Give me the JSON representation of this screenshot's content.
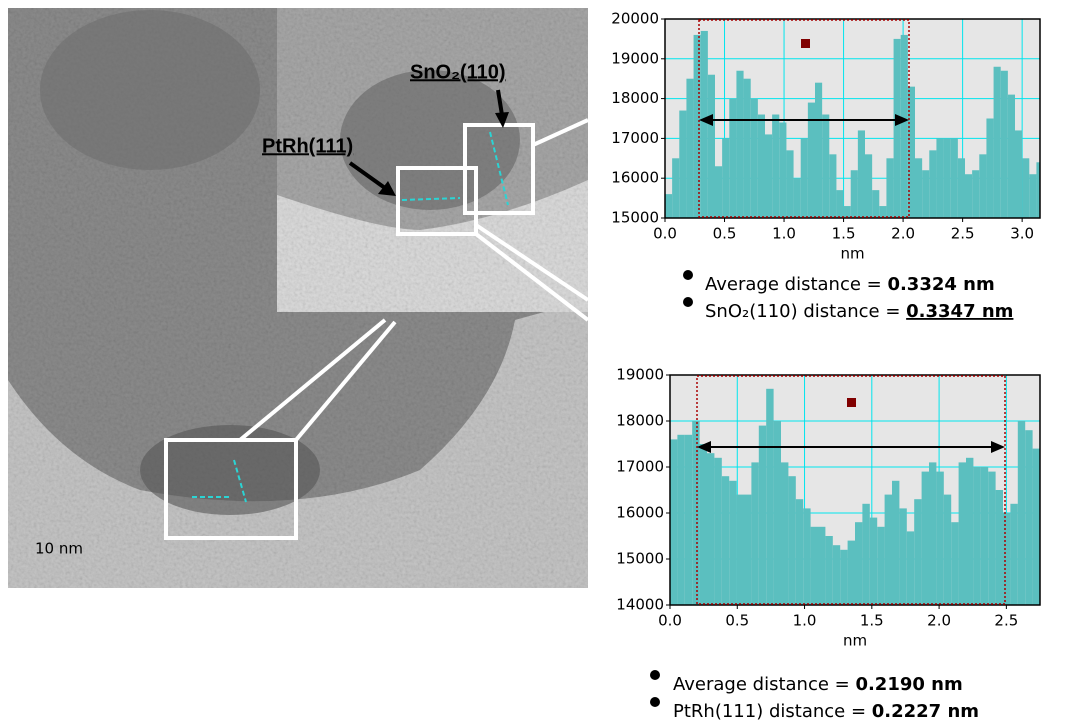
{
  "image": {
    "scale_bar": "10 nm",
    "labels": [
      "PtRh(111)",
      "SnO₂(110)"
    ]
  },
  "chart_data": [
    {
      "type": "bar",
      "x_label": "nm",
      "color": "#5bbfbf",
      "grid": true,
      "grid_color": "#00e5ee",
      "x": [
        0,
        0.06,
        0.12,
        0.18,
        0.24,
        0.3,
        0.36,
        0.42,
        0.48,
        0.54,
        0.6,
        0.66,
        0.72,
        0.78,
        0.84,
        0.9,
        0.96,
        1.02,
        1.08,
        1.14,
        1.2,
        1.26,
        1.32,
        1.38,
        1.44,
        1.5,
        1.56,
        1.62,
        1.68,
        1.74,
        1.8,
        1.86,
        1.92,
        1.98,
        2.04,
        2.1,
        2.16,
        2.22,
        2.28,
        2.34,
        2.4,
        2.46,
        2.52,
        2.58,
        2.64,
        2.7,
        2.76,
        2.82,
        2.88,
        2.94,
        3.0,
        3.06,
        3.12
      ],
      "values": [
        15600,
        16500,
        17700,
        18500,
        19600,
        19700,
        18600,
        16300,
        17000,
        18000,
        18700,
        18500,
        18000,
        17600,
        17100,
        17600,
        17400,
        16700,
        16000,
        17000,
        17900,
        18400,
        17600,
        16600,
        15700,
        15300,
        16200,
        17200,
        16600,
        15700,
        15300,
        16500,
        19500,
        19600,
        18300,
        16500,
        16200,
        16700,
        17000,
        17000,
        17000,
        16500,
        16100,
        16200,
        16600,
        17500,
        18800,
        18700,
        18100,
        17200,
        16500,
        16100,
        16400
      ],
      "xlim": [
        0,
        3.15
      ],
      "ylim": [
        15000,
        20000
      ],
      "xticks": [
        {
          "value": 0,
          "label": "0.0"
        },
        0.5,
        {
          "value": 1,
          "label": "1.0"
        },
        1.5,
        {
          "value": 2,
          "label": "2.0"
        },
        2.5,
        {
          "value": 3,
          "label": "3.0"
        }
      ],
      "yticks": [
        15000,
        16000,
        17000,
        18000,
        19000,
        20000
      ],
      "notes": [
        {
          "text": "Average distance = ",
          "value": "0.3324 nm"
        },
        {
          "text": "SnO₂(110) distance = ",
          "value": "0.3347 nm"
        }
      ]
    },
    {
      "type": "bar",
      "x_label": "nm",
      "color": "#5bbfbf",
      "grid": true,
      "grid_color": "#00e5ee",
      "x": [
        0,
        0.055,
        0.11,
        0.165,
        0.22,
        0.275,
        0.33,
        0.385,
        0.44,
        0.495,
        0.55,
        0.605,
        0.66,
        0.715,
        0.77,
        0.825,
        0.88,
        0.935,
        0.99,
        1.045,
        1.1,
        1.155,
        1.21,
        1.265,
        1.32,
        1.375,
        1.43,
        1.485,
        1.54,
        1.595,
        1.65,
        1.705,
        1.76,
        1.815,
        1.87,
        1.925,
        1.98,
        2.035,
        2.09,
        2.145,
        2.2,
        2.255,
        2.31,
        2.365,
        2.42,
        2.475,
        2.53,
        2.585,
        2.64,
        2.695
      ],
      "values": [
        17600,
        17700,
        17700,
        18000,
        17500,
        17300,
        17200,
        16800,
        16700,
        16400,
        16400,
        17100,
        17900,
        18700,
        18000,
        17100,
        16800,
        16300,
        16100,
        15700,
        15700,
        15500,
        15300,
        15200,
        15400,
        15800,
        16200,
        15900,
        15700,
        16400,
        16700,
        16100,
        15600,
        16300,
        16900,
        17100,
        16900,
        16400,
        15800,
        17100,
        17200,
        17000,
        17000,
        16900,
        16500,
        16000,
        16200,
        18000,
        17800,
        17400
      ],
      "xlim": [
        0,
        2.75
      ],
      "ylim": [
        14000,
        19000
      ],
      "xticks": [
        {
          "value": 0,
          "label": "0.0"
        },
        0.5,
        {
          "value": 1,
          "label": "1.0"
        },
        1.5,
        {
          "value": 2,
          "label": "2.0"
        },
        2.5
      ],
      "yticks": [
        14000,
        15000,
        16000,
        17000,
        18000,
        19000
      ],
      "notes": [
        {
          "text": "Average distance = ",
          "value": "0.2190 nm"
        },
        {
          "text": "PtRh(111) distance = ",
          "value": "0.2227 nm"
        }
      ]
    }
  ]
}
